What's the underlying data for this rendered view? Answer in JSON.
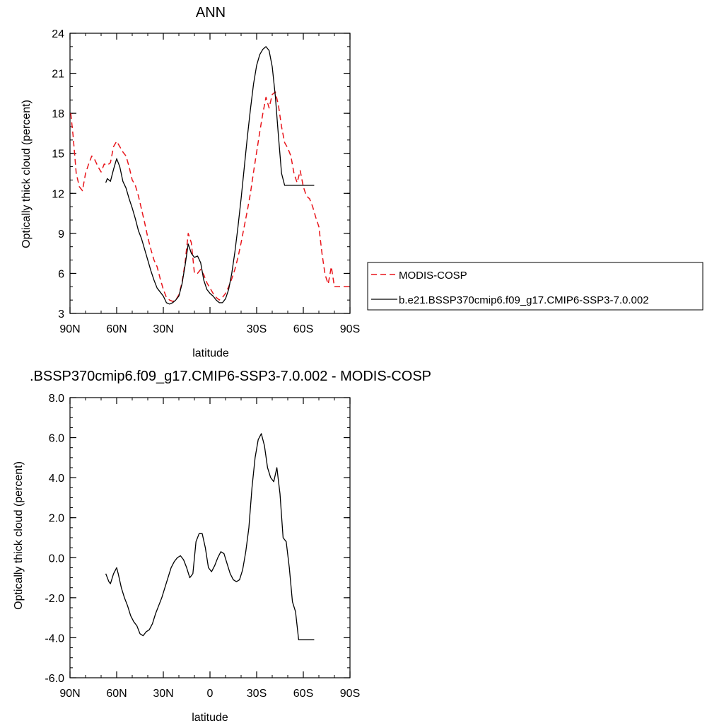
{
  "chart_data": [
    {
      "type": "line",
      "title": "ANN",
      "xlabel": "latitude",
      "ylabel": "Optically thick cloud (percent)",
      "xlim": [
        90,
        -90
      ],
      "ylim": [
        3,
        24
      ],
      "xticks": [
        90,
        60,
        30,
        0,
        -30,
        -60,
        -90
      ],
      "xtick_labels": [
        "90N",
        "60N",
        "30N",
        "",
        "30S",
        "60S",
        "90S"
      ],
      "yticks": [
        3,
        6,
        9,
        12,
        15,
        18,
        21,
        24
      ],
      "ytick_labels": [
        "3",
        "6",
        "9",
        "12",
        "15",
        "18",
        "21",
        "24"
      ],
      "legend_position": "right",
      "series": [
        {
          "name": "MODIS-COSP",
          "color": "#e8151b",
          "dash": "dashed",
          "x": [
            89.5,
            88,
            86,
            84,
            82,
            80,
            78,
            76,
            74,
            72,
            70,
            68,
            66,
            64,
            62,
            60,
            58,
            56,
            54,
            52,
            50,
            48,
            46,
            44,
            42,
            40,
            38,
            36,
            34,
            32,
            30,
            28,
            26,
            24,
            22,
            20,
            18,
            16,
            14,
            12,
            10,
            8,
            6,
            4,
            2,
            0,
            -2,
            -4,
            -6,
            -8,
            -10,
            -12,
            -14,
            -16,
            -18,
            -20,
            -22,
            -24,
            -26,
            -28,
            -30,
            -32,
            -34,
            -36,
            -38,
            -40,
            -42,
            -44,
            -46,
            -48,
            -50,
            -52,
            -54,
            -56,
            -58,
            -60,
            -62,
            -64,
            -66,
            -68,
            -70,
            -72,
            -74,
            -76,
            -78,
            -80,
            -82,
            -84,
            -86,
            -88,
            -89.5
          ],
          "y": [
            18.0,
            16.3,
            13.5,
            12.5,
            12.2,
            13.5,
            14.2,
            14.8,
            14.5,
            14.0,
            13.6,
            14.2,
            14.1,
            14.3,
            15.5,
            15.9,
            15.5,
            15.1,
            14.8,
            14.0,
            13.0,
            12.6,
            11.8,
            10.8,
            9.8,
            8.7,
            7.8,
            7.0,
            6.5,
            5.6,
            4.8,
            4.2,
            4.0,
            3.9,
            4.0,
            4.4,
            5.3,
            6.8,
            9.0,
            8.3,
            6.0,
            6.0,
            6.3,
            5.9,
            5.3,
            4.9,
            4.5,
            4.2,
            4.0,
            4.2,
            4.5,
            5.0,
            5.6,
            6.3,
            7.2,
            8.3,
            9.5,
            10.7,
            12.0,
            13.6,
            15.1,
            16.6,
            18.0,
            19.2,
            18.4,
            19.4,
            19.6,
            18.6,
            17.0,
            15.8,
            15.4,
            14.8,
            13.5,
            12.8,
            13.7,
            12.5,
            11.8,
            11.6,
            11.0,
            10.2,
            9.5,
            7.5,
            5.9,
            5.2,
            6.5,
            5.0,
            5.0,
            5.0,
            5.0,
            5.0,
            5.0
          ]
        },
        {
          "name": "b.e21.BSSP370cmip6.f09_g17.CMIP6-SSP3-7.0.002",
          "color": "#000000",
          "dash": "solid",
          "x": [
            67,
            66,
            64,
            62,
            60,
            58,
            56,
            54,
            52,
            50,
            48,
            46,
            44,
            42,
            40,
            38,
            36,
            34,
            32,
            30,
            28,
            26,
            24,
            22,
            20,
            18,
            16,
            14,
            12,
            10,
            8,
            6,
            4,
            2,
            0,
            -2,
            -4,
            -6,
            -8,
            -10,
            -12,
            -14,
            -16,
            -18,
            -20,
            -22,
            -24,
            -26,
            -28,
            -30,
            -32,
            -34,
            -36,
            -38,
            -40,
            -42,
            -44,
            -46,
            -48,
            -50,
            -52,
            -54,
            -56,
            -58,
            -60,
            -62,
            -64,
            -66,
            -67
          ],
          "y": [
            12.8,
            13.1,
            12.9,
            13.8,
            14.6,
            14.0,
            12.9,
            12.4,
            11.6,
            10.9,
            10.1,
            9.2,
            8.6,
            7.8,
            7.0,
            6.2,
            5.5,
            4.9,
            4.6,
            4.3,
            3.8,
            3.7,
            3.8,
            4.0,
            4.3,
            5.2,
            6.6,
            8.2,
            7.5,
            7.2,
            7.3,
            6.8,
            5.5,
            4.8,
            4.5,
            4.3,
            4.0,
            3.8,
            3.8,
            4.1,
            4.8,
            6.0,
            7.6,
            9.5,
            11.6,
            13.9,
            16.2,
            18.3,
            20.2,
            21.6,
            22.4,
            22.8,
            23.0,
            22.7,
            21.5,
            19.3,
            16.3,
            13.5,
            12.6,
            12.6,
            12.6,
            12.6,
            12.6,
            12.6,
            12.6,
            12.6,
            12.6,
            12.6,
            12.6
          ]
        }
      ]
    },
    {
      "type": "line",
      "title": ".BSSP370cmip6.f09_g17.CMIP6-SSP3-7.0.002 - MODIS-COSP",
      "xlabel": "latitude",
      "ylabel": "Optically thick cloud (percent)",
      "xlim": [
        90,
        -90
      ],
      "ylim": [
        -6,
        8
      ],
      "xticks": [
        90,
        60,
        30,
        0,
        -30,
        -60,
        -90
      ],
      "xtick_labels": [
        "90N",
        "60N",
        "30N",
        "0",
        "30S",
        "60S",
        "90S"
      ],
      "yticks": [
        -6,
        -4,
        -2,
        0,
        2,
        4,
        6,
        8
      ],
      "ytick_labels": [
        "-6.0",
        "-4.0",
        "-2.0",
        "0.0",
        "2.0",
        "4.0",
        "6.0",
        "8.0"
      ],
      "series": [
        {
          "color": "#000000",
          "dash": "solid",
          "x": [
            67,
            65,
            64,
            62,
            60,
            59,
            57,
            55,
            53,
            51,
            49,
            47,
            45,
            43,
            41,
            39,
            37,
            35,
            33,
            31,
            29,
            27,
            25,
            23,
            21,
            19,
            17,
            15,
            13,
            11,
            9,
            7,
            5,
            3,
            1,
            -1,
            -3,
            -5,
            -7,
            -9,
            -11,
            -13,
            -15,
            -17,
            -19,
            -21,
            -23,
            -25,
            -27,
            -29,
            -31,
            -33,
            -35,
            -37,
            -39,
            -41,
            -43,
            -45,
            -47,
            -49,
            -51,
            -53,
            -55,
            -57,
            -58,
            -59,
            -60,
            -61,
            -62,
            -63,
            -64,
            -65,
            -66,
            -67
          ],
          "y": [
            -0.8,
            -1.2,
            -1.3,
            -0.8,
            -0.5,
            -0.8,
            -1.5,
            -2.0,
            -2.4,
            -2.9,
            -3.2,
            -3.4,
            -3.8,
            -3.9,
            -3.7,
            -3.6,
            -3.3,
            -2.8,
            -2.4,
            -2.0,
            -1.5,
            -1.0,
            -0.5,
            -0.2,
            0.0,
            0.1,
            -0.1,
            -0.5,
            -1.0,
            -0.8,
            0.8,
            1.2,
            1.2,
            0.5,
            -0.5,
            -0.7,
            -0.4,
            0.0,
            0.3,
            0.2,
            -0.3,
            -0.8,
            -1.1,
            -1.2,
            -1.1,
            -0.6,
            0.3,
            1.5,
            3.5,
            5.0,
            5.9,
            6.2,
            5.6,
            4.5,
            4.0,
            3.8,
            4.5,
            3.2,
            1.0,
            0.8,
            -0.5,
            -2.2,
            -2.7,
            -4.1,
            -4.1,
            -4.1,
            -4.1,
            -4.1,
            -4.1,
            -4.1,
            -4.1,
            -4.1,
            -4.1,
            -4.1
          ]
        }
      ]
    }
  ]
}
